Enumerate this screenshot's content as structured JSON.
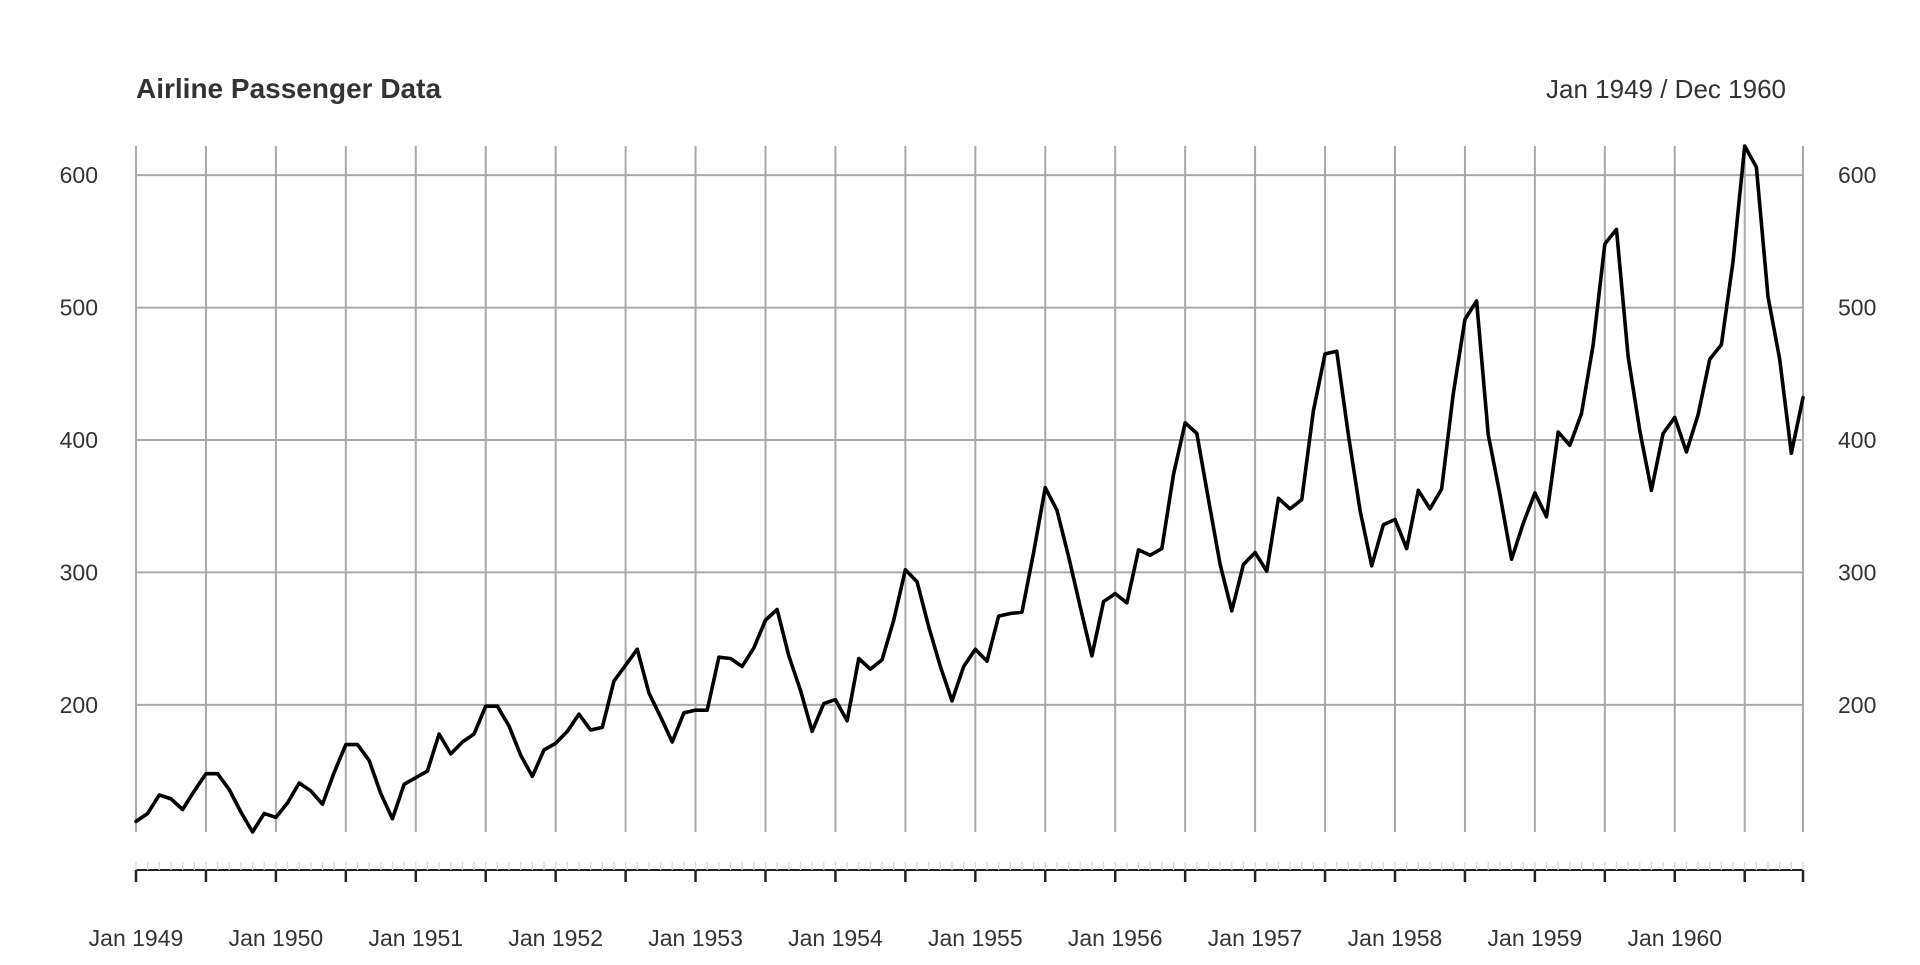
{
  "chart_data": {
    "type": "line",
    "title": "Airline Passenger Data",
    "date_range": "Jan 1949 / Dec 1960",
    "xlabel": "",
    "ylabel": "",
    "x_start": "Jan 1949",
    "x_end": "Dec 1960",
    "frequency": "monthly",
    "ylim": [
      104,
      622
    ],
    "y_ticks": [
      200,
      300,
      400,
      500,
      600
    ],
    "y_tick_labels": [
      "200",
      "300",
      "400",
      "500",
      "600"
    ],
    "x_tick_labels": [
      "Jan 1949",
      "Jan 1950",
      "Jan 1951",
      "Jan 1952",
      "Jan 1953",
      "Jan 1954",
      "Jan 1955",
      "Jan 1956",
      "Jan 1957",
      "Jan 1958",
      "Jan 1959",
      "Jan 1960"
    ],
    "grid": true,
    "line_color": "#000000",
    "grid_color": "#a8a8a8",
    "series": [
      {
        "values": [
          112,
          118,
          132,
          129,
          121,
          135,
          148,
          148,
          136,
          119,
          104,
          118,
          115,
          126,
          141,
          135,
          125,
          149,
          170,
          170,
          158,
          133,
          114,
          140,
          145,
          150,
          178,
          163,
          172,
          178,
          199,
          199,
          184,
          162,
          146,
          166,
          171,
          180,
          193,
          181,
          183,
          218,
          230,
          242,
          209,
          191,
          172,
          194,
          196,
          196,
          236,
          235,
          229,
          243,
          264,
          272,
          237,
          211,
          180,
          201,
          204,
          188,
          235,
          227,
          234,
          264,
          302,
          293,
          259,
          229,
          203,
          229,
          242,
          233,
          267,
          269,
          270,
          315,
          364,
          347,
          312,
          274,
          237,
          278,
          284,
          277,
          317,
          313,
          318,
          374,
          413,
          405,
          355,
          306,
          271,
          306,
          315,
          301,
          356,
          348,
          355,
          422,
          465,
          467,
          404,
          347,
          305,
          336,
          340,
          318,
          362,
          348,
          363,
          435,
          491,
          505,
          404,
          359,
          310,
          337,
          360,
          342,
          406,
          396,
          420,
          472,
          548,
          559,
          463,
          407,
          362,
          405,
          417,
          391,
          419,
          461,
          472,
          535,
          622,
          606,
          508,
          461,
          390,
          432
        ]
      }
    ]
  }
}
